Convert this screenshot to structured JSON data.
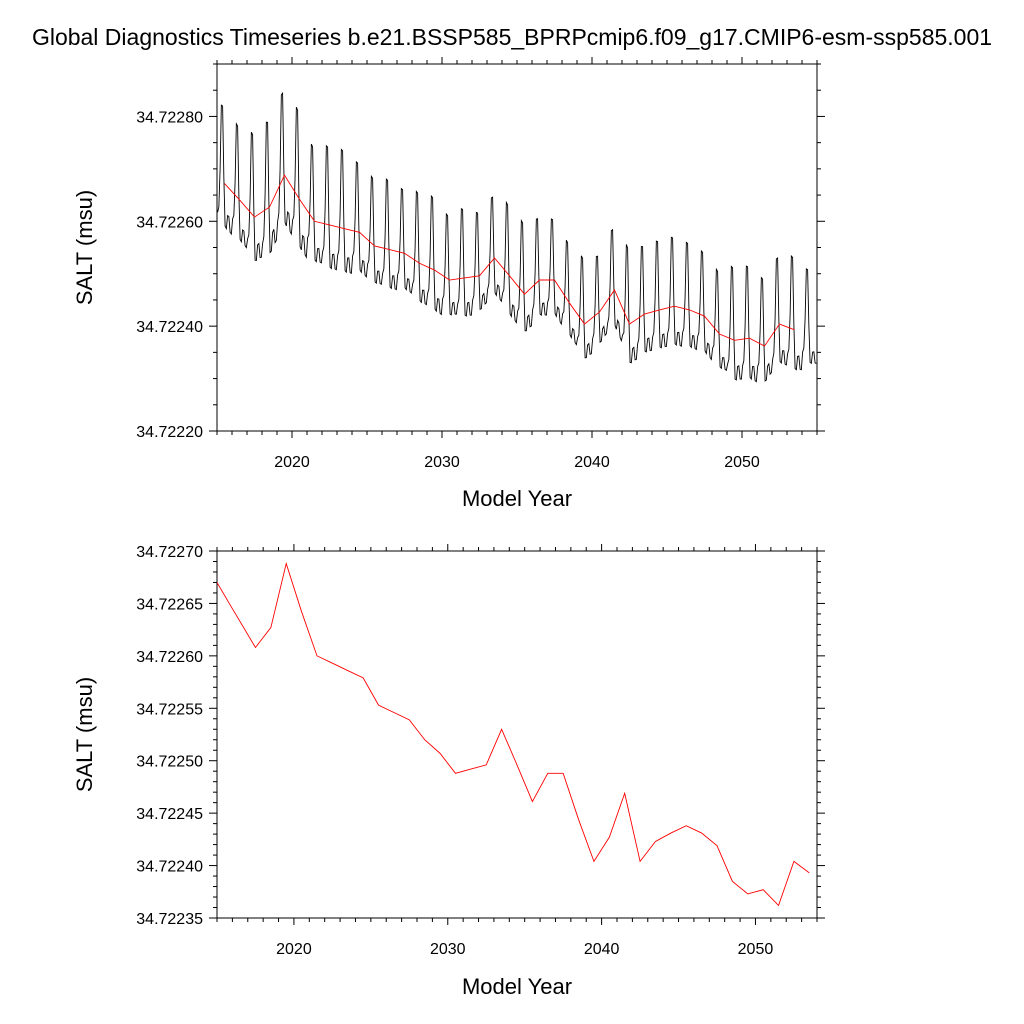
{
  "title": "Global Diagnostics Timeseries b.e21.BSSP585_BPRPcmip6.f09_g17.CMIP6-esm-ssp585.001",
  "chart_data": [
    {
      "type": "line",
      "xlabel": "Model Year",
      "ylabel": "SALT (msu)",
      "xlim": [
        2015,
        2055
      ],
      "ylim": [
        34.7222,
        34.7229
      ],
      "x_ticks": [
        2020,
        2030,
        2040,
        2050
      ],
      "x_tick_labels": [
        "2020",
        "2030",
        "2040",
        "2050"
      ],
      "y_ticks": [
        34.7222,
        34.7224,
        34.7226,
        34.7228
      ],
      "y_tick_labels": [
        "34.72220",
        "34.72240",
        "34.72260",
        "34.72280"
      ],
      "grid": false,
      "series": [
        {
          "color": "#000000",
          "style": "monthly",
          "x_start": 2015.04,
          "step": 0.0833333,
          "amplitude": [
            0.00027,
            0.00025,
            0.00028,
            0.0003,
            0.0003,
            0.0003,
            0.00025,
            0.00027,
            0.00027,
            0.00024,
            0.00023,
            0.00024,
            0.00022,
            0.00024,
            0.00025,
            0.00022,
            0.00024,
            0.00022,
            0.00022,
            0.00024,
            0.00024,
            0.00022,
            0.00021,
            0.0002,
            0.00022,
            0.0002,
            0.00022,
            0.00025,
            0.00024,
            0.00024,
            0.00024,
            0.00023,
            0.00022,
            0.00021,
            0.00025,
            0.00025,
            0.00023,
            0.00024,
            0.00025,
            0.00021
          ]
        },
        {
          "color": "#ff0000",
          "x": [
            2015.5,
            2016.5,
            2017.5,
            2018.5,
            2019.5,
            2020.5,
            2021.5,
            2022.5,
            2023.5,
            2024.5,
            2025.5,
            2026.5,
            2027.5,
            2028.5,
            2029.5,
            2030.5,
            2031.5,
            2032.5,
            2033.5,
            2034.5,
            2035.5,
            2036.5,
            2037.5,
            2038.5,
            2039.5,
            2040.5,
            2041.5,
            2042.5,
            2043.5,
            2044.5,
            2045.5,
            2046.5,
            2047.5,
            2048.5,
            2049.5,
            2050.5,
            2051.5,
            2052.5,
            2053.5
          ],
          "y": [
            34.722672,
            34.722641,
            34.722608,
            34.722627,
            34.722688,
            34.722642,
            34.7226,
            34.722593,
            34.722586,
            34.722579,
            34.722553,
            34.722546,
            34.722539,
            34.72252,
            34.722507,
            34.722488,
            34.722492,
            34.722496,
            34.72253,
            34.722496,
            34.722461,
            34.722488,
            34.722488,
            34.722444,
            34.722404,
            34.722427,
            34.722469,
            34.722404,
            34.722423,
            34.722431,
            34.722438,
            34.722431,
            34.722419,
            34.722385,
            34.722373,
            34.722377,
            34.722362,
            34.722404,
            34.722393
          ]
        }
      ]
    },
    {
      "type": "line",
      "xlabel": "Model Year",
      "ylabel": "SALT (msu)",
      "xlim": [
        2015,
        2054
      ],
      "ylim": [
        34.72235,
        34.7227
      ],
      "x_ticks": [
        2020,
        2030,
        2040,
        2050
      ],
      "x_tick_labels": [
        "2020",
        "2030",
        "2040",
        "2050"
      ],
      "y_ticks": [
        34.72235,
        34.7224,
        34.72245,
        34.7225,
        34.72255,
        34.7226,
        34.72265,
        34.7227
      ],
      "y_tick_labels": [
        "34.72235",
        "34.72240",
        "34.72245",
        "34.72250",
        "34.72255",
        "34.72260",
        "34.72265",
        "34.72270"
      ],
      "grid": false,
      "series": [
        {
          "color": "#ff0000",
          "x": [
            2015.0,
            2016.0,
            2017.5,
            2018.5,
            2019.5,
            2020.5,
            2021.5,
            2022.5,
            2023.5,
            2024.5,
            2025.5,
            2026.5,
            2027.5,
            2028.5,
            2029.5,
            2030.5,
            2031.5,
            2032.5,
            2033.5,
            2034.5,
            2035.5,
            2036.5,
            2037.5,
            2038.5,
            2039.5,
            2040.5,
            2041.5,
            2042.5,
            2043.5,
            2044.5,
            2045.5,
            2046.5,
            2047.5,
            2048.5,
            2049.5,
            2050.5,
            2051.5,
            2052.5,
            2053.5
          ],
          "y": [
            34.72267,
            34.722645,
            34.722608,
            34.722627,
            34.722688,
            34.722642,
            34.7226,
            34.722593,
            34.722586,
            34.722579,
            34.722553,
            34.722546,
            34.722539,
            34.72252,
            34.722507,
            34.722488,
            34.722492,
            34.722496,
            34.72253,
            34.722496,
            34.722461,
            34.722488,
            34.722488,
            34.722444,
            34.722404,
            34.722427,
            34.722469,
            34.722404,
            34.722423,
            34.722431,
            34.722438,
            34.722431,
            34.722419,
            34.722385,
            34.722373,
            34.722377,
            34.722362,
            34.722404,
            34.722393
          ]
        }
      ]
    }
  ]
}
